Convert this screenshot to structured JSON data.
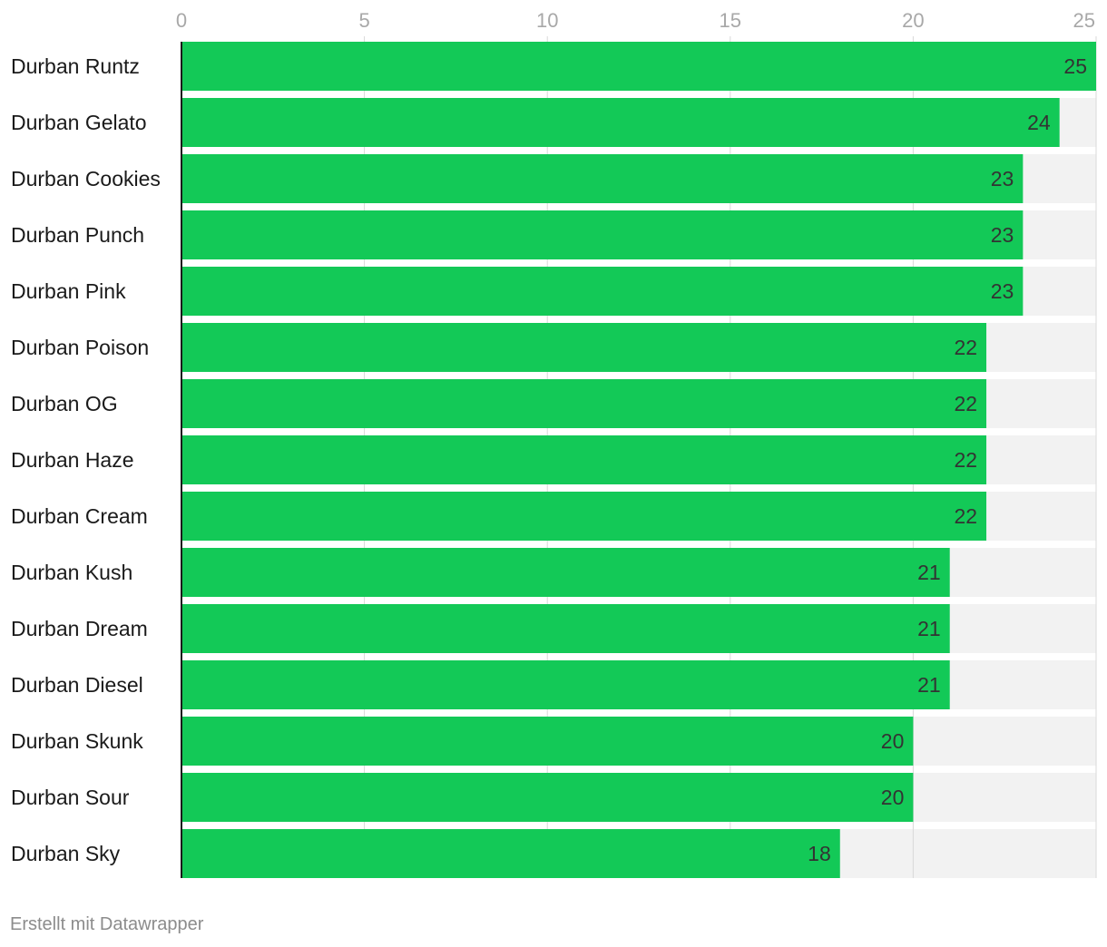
{
  "colors": {
    "bar": "#13c957",
    "track": "#f2f2f2",
    "grid": "#d9d9d9",
    "axis": "#1a1a1a",
    "tick_text": "#a8a8a8",
    "label_text": "#1a1a1a",
    "value_text": "#333333",
    "background": "#ffffff"
  },
  "chart_data": {
    "type": "bar",
    "orientation": "horizontal",
    "title": "",
    "xlabel": "",
    "ylabel": "",
    "xlim": [
      0,
      25
    ],
    "ticks": [
      0,
      5,
      10,
      15,
      20,
      25
    ],
    "grid": true,
    "legend": "none",
    "categories": [
      "Durban Runtz",
      "Durban Gelato",
      "Durban Cookies",
      "Durban Punch",
      "Durban Pink",
      "Durban Poison",
      "Durban OG",
      "Durban Haze",
      "Durban Cream",
      "Durban Kush",
      "Durban Dream",
      "Durban Diesel",
      "Durban Skunk",
      "Durban Sour",
      "Durban Sky"
    ],
    "values": [
      25,
      24,
      23,
      23,
      23,
      22,
      22,
      22,
      22,
      21,
      21,
      21,
      20,
      20,
      18
    ]
  },
  "footer": {
    "credit": "Erstellt mit Datawrapper"
  }
}
